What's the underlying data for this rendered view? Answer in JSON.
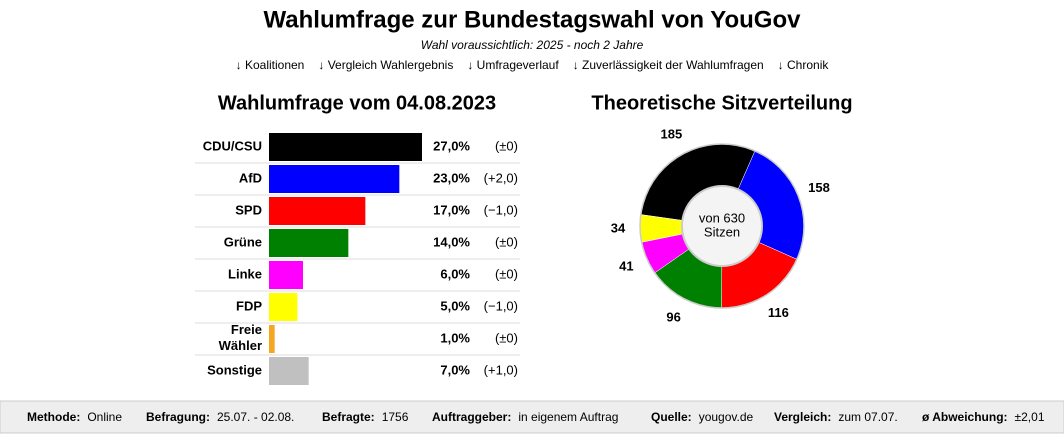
{
  "header": {
    "title": "Wahlumfrage zur Bundestagswahl von YouGov",
    "subtitle": "Wahl voraussichtlich: 2025 - noch 2 Jahre",
    "nav": [
      "↓ Koalitionen",
      "↓ Vergleich Wahlergebnis",
      "↓ Umfrageverlauf",
      "↓ Zuverlässigkeit der Wahlumfragen",
      "↓ Chronik"
    ]
  },
  "chart_data": [
    {
      "type": "bar",
      "orientation": "horizontal",
      "title": "Wahlumfrage vom 04.08.2023",
      "categories": [
        "CDU/CSU",
        "AfD",
        "SPD",
        "Grüne",
        "Linke",
        "FDP",
        "Freie Wähler",
        "Sonstige"
      ],
      "values": [
        27,
        23,
        17,
        14,
        6,
        5,
        1,
        7
      ],
      "value_labels": [
        "27,0%",
        "23,0%",
        "17,0%",
        "14,0%",
        "6,0%",
        "5,0%",
        "1,0%",
        "7,0%"
      ],
      "changes": [
        "(±0)",
        "(+2,0)",
        "(−1,0)",
        "(±0)",
        "(±0)",
        "(−1,0)",
        "(±0)",
        "(+1,0)"
      ],
      "colors": [
        "#000000",
        "#0000ff",
        "#ff0000",
        "#008000",
        "#ff00ff",
        "#ffff00",
        "#f5a623",
        "#c0c0c0"
      ],
      "category_links": [
        true,
        true,
        true,
        true,
        true,
        true,
        false,
        true
      ]
    },
    {
      "type": "donut",
      "title": "Theoretische Sitzverteilung",
      "values": [
        185,
        158,
        116,
        96,
        41,
        34
      ],
      "colors": [
        "#000000",
        "#0000ff",
        "#ff0000",
        "#008000",
        "#ff00ff",
        "#ffff00"
      ],
      "center_label": [
        "von 630",
        "Sitzen"
      ]
    }
  ],
  "footer": [
    {
      "label": "Methode:",
      "value": "Online"
    },
    {
      "label": "Befragung:",
      "value": "25.07. - 02.08."
    },
    {
      "label": "Befragte:",
      "value": "1756"
    },
    {
      "label": "Auftraggeber:",
      "value": "in eigenem Auftrag"
    },
    {
      "label": "Quelle:",
      "value": "yougov.de"
    },
    {
      "label": "Vergleich:",
      "value": "zum 07.07."
    },
    {
      "label": "ø Abweichung:",
      "value": "±2,01"
    }
  ]
}
